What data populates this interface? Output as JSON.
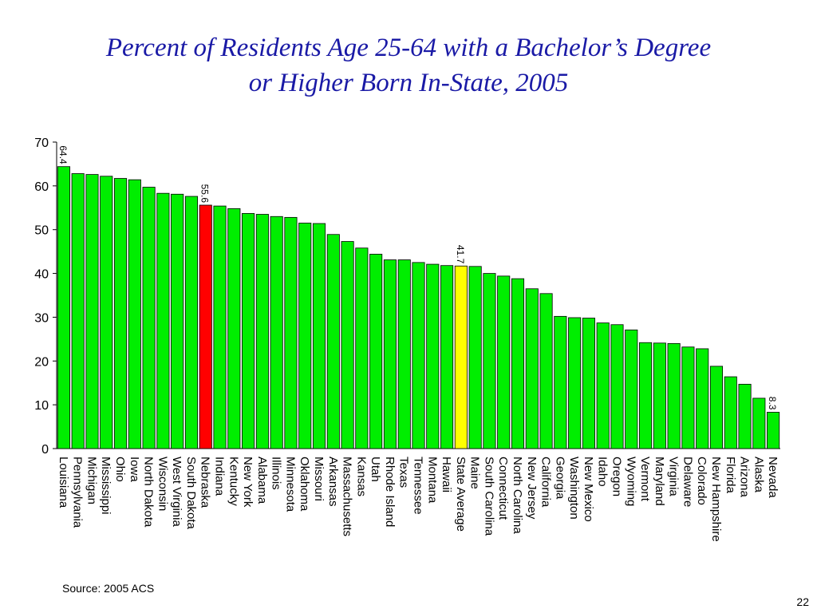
{
  "slide": {
    "title_line1": "Percent of Residents Age 25-64 with a Bachelor’s Degree",
    "title_line2": "or Higher Born In-State, 2005",
    "source": "Source:  2005 ACS",
    "page_number": "22"
  },
  "chart_data": {
    "type": "bar",
    "title": "Percent of Residents Age 25-64 with a Bachelor’s Degree or Higher Born In-State, 2005",
    "xlabel": "",
    "ylabel": "",
    "ylim": [
      0,
      70
    ],
    "yticks": [
      0,
      10,
      20,
      30,
      40,
      50,
      60,
      70
    ],
    "grid": false,
    "legend": "none",
    "categories": [
      "Louisiana",
      "Pennsylvania",
      "Michigan",
      "Mississippi",
      "Ohio",
      "Iowa",
      "North Dakota",
      "Wisconsin",
      "West Virginia",
      "South Dakota",
      "Nebraska",
      "Indiana",
      "Kentucky",
      "New York",
      "Alabama",
      "Illinois",
      "Minnesota",
      "Oklahoma",
      "Missouri",
      "Arkansas",
      "Massachusetts",
      "Kansas",
      "Utah",
      "Rhode Island",
      "Texas",
      "Tennessee",
      "Montana",
      "Hawaii",
      "State Average",
      "Maine",
      "South Carolina",
      "Connecticut",
      "North Carolina",
      "New Jersey",
      "California",
      "Georgia",
      "Washington",
      "New Mexico",
      "Idaho",
      "Oregon",
      "Wyoming",
      "Vermont",
      "Maryland",
      "Virginia",
      "Delaware",
      "Colorado",
      "New Hampshire",
      "Florida",
      "Arizona",
      "Alaska",
      "Nevada"
    ],
    "values": [
      64.4,
      62.8,
      62.6,
      62.2,
      61.7,
      61.4,
      59.7,
      58.3,
      58.1,
      57.6,
      55.6,
      55.4,
      54.8,
      53.7,
      53.5,
      53.0,
      52.8,
      51.5,
      51.4,
      48.9,
      47.3,
      45.8,
      44.4,
      43.1,
      43.1,
      42.5,
      42.1,
      41.8,
      41.7,
      41.6,
      40.0,
      39.4,
      38.8,
      36.5,
      35.4,
      30.2,
      29.9,
      29.8,
      28.7,
      28.3,
      27.1,
      24.2,
      24.1,
      24.0,
      23.2,
      22.8,
      18.8,
      16.4,
      14.7,
      11.5,
      8.3
    ],
    "highlight": {
      "Nebraska": "#ff0000",
      "State Average": "#ffff00"
    },
    "bar_color": "#00ee00",
    "data_labels": [
      {
        "category": "Louisiana",
        "text": "64.4"
      },
      {
        "category": "Nebraska",
        "text": "55.6"
      },
      {
        "category": "State Average",
        "text": "41.7"
      },
      {
        "category": "Nevada",
        "text": "8.3"
      }
    ]
  }
}
